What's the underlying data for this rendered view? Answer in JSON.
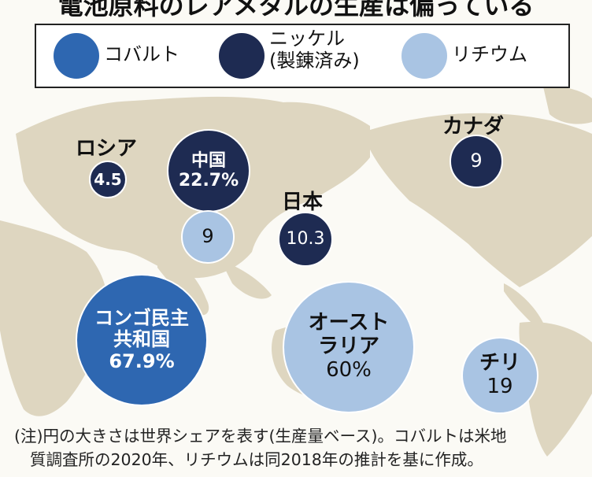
{
  "title": "電池原料のレアメタルの生産は偏っている",
  "legend": {
    "cobalt": "コバルト",
    "nickel_line1": "ニッケル",
    "nickel_line2": "(製錬済み)",
    "lithium": "リチウム",
    "colors": {
      "cobalt": "#2e67b1",
      "nickel": "#1e2b52",
      "lithium": "#a9c4e3"
    }
  },
  "bubbles": {
    "russia": {
      "country": "ロシア",
      "value": "4.5",
      "metal": "nickel"
    },
    "china_nickel": {
      "country": "中国",
      "value": "22.7%",
      "metal": "nickel"
    },
    "china_lithium": {
      "value": "9",
      "metal": "lithium"
    },
    "japan": {
      "country": "日本",
      "value": "10.3",
      "metal": "nickel"
    },
    "canada": {
      "country": "カナダ",
      "value": "9",
      "metal": "nickel"
    },
    "congo": {
      "line1": "コンゴ民主",
      "line2": "共和国",
      "value": "67.9%",
      "metal": "cobalt"
    },
    "australia": {
      "line1": "オースト",
      "line2": "ラリア",
      "value": "60%",
      "metal": "lithium"
    },
    "chile": {
      "country": "チリ",
      "value": "19",
      "metal": "lithium"
    }
  },
  "note": {
    "line1": "(注)円の大きさは世界シェアを表す(生産量ベース)。コバルトは米地",
    "line2": "質調査所の2020年、リチウムは同2018年の推計を基に作成。"
  }
}
